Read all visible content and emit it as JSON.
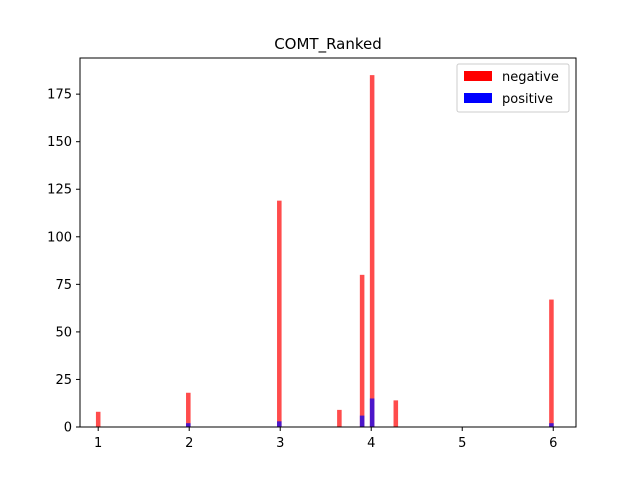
{
  "chart_data": {
    "type": "bar",
    "title": "COMT_Ranked",
    "xlabel": "",
    "ylabel": "",
    "xlim": [
      0.8,
      6.25
    ],
    "ylim": [
      0,
      194
    ],
    "xticks": [
      1,
      2,
      3,
      4,
      5,
      6
    ],
    "yticks": [
      0,
      25,
      50,
      75,
      100,
      125,
      150,
      175
    ],
    "bar_width": 0.05,
    "grid": false,
    "legend_position": "top-right",
    "series": [
      {
        "name": "negative",
        "color": "#ff0000",
        "points": [
          {
            "x": 1.0,
            "y": 8
          },
          {
            "x": 1.99,
            "y": 18
          },
          {
            "x": 2.99,
            "y": 119
          },
          {
            "x": 3.65,
            "y": 9
          },
          {
            "x": 3.9,
            "y": 80
          },
          {
            "x": 4.01,
            "y": 185
          },
          {
            "x": 4.27,
            "y": 14
          },
          {
            "x": 5.98,
            "y": 67
          }
        ]
      },
      {
        "name": "positive",
        "color": "#0000ff",
        "points": [
          {
            "x": 1.99,
            "y": 2
          },
          {
            "x": 2.99,
            "y": 3
          },
          {
            "x": 3.9,
            "y": 6
          },
          {
            "x": 4.01,
            "y": 15
          },
          {
            "x": 5.98,
            "y": 2
          }
        ]
      }
    ]
  }
}
